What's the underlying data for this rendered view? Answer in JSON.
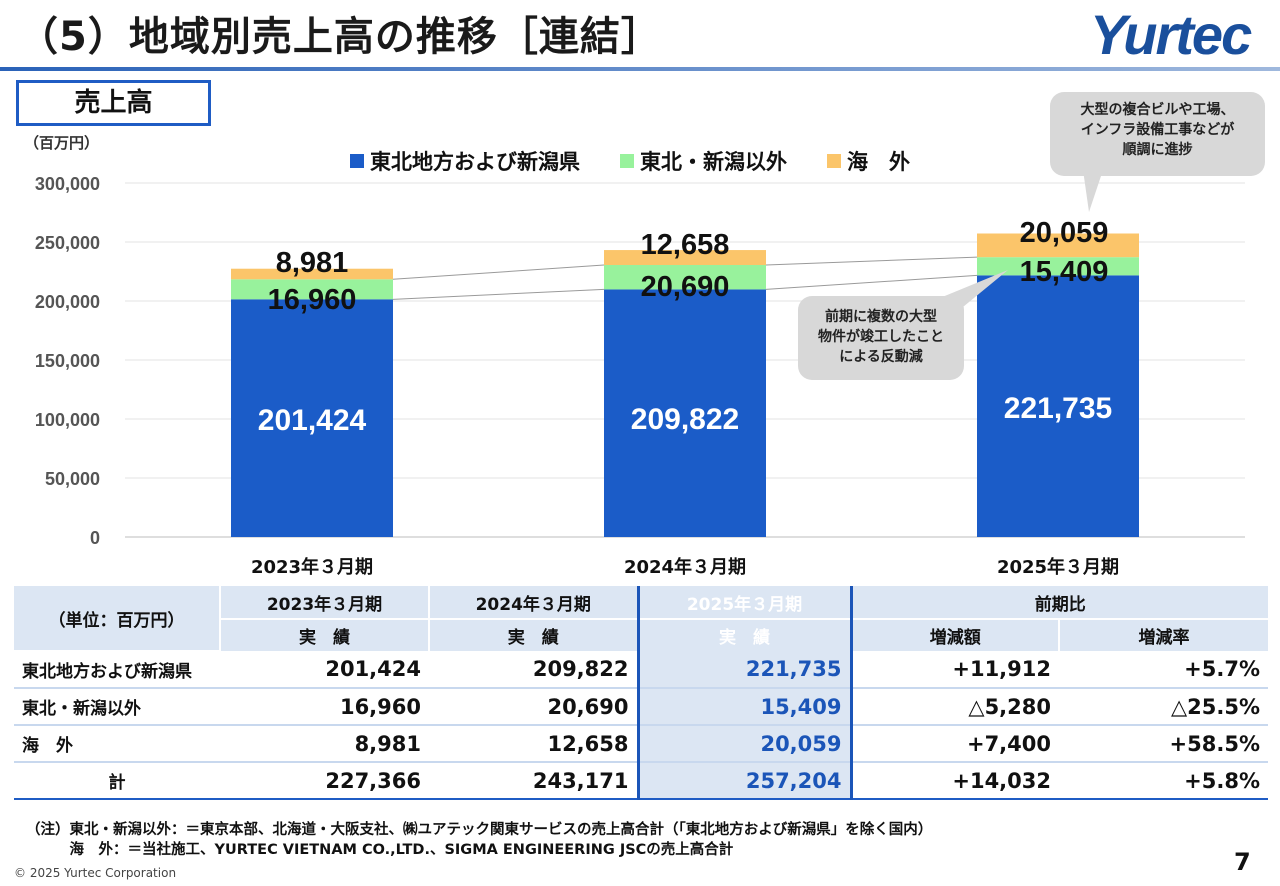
{
  "header": {
    "title": "（5）地域別売上高の推移［連結］",
    "logo": "Yurtec",
    "section_label": "売上高"
  },
  "chart_data": {
    "type": "bar",
    "stacked": true,
    "unit": "（百万円）",
    "categories": [
      "2023年３月期",
      "2024年３月期",
      "2025年３月期"
    ],
    "series": [
      {
        "name": "東北地方および新潟県",
        "color": "#1b5cc8",
        "values": [
          201424,
          209822,
          221735
        ],
        "labels": [
          "201,424",
          "209,822",
          "221,735"
        ]
      },
      {
        "name": "東北・新潟以外",
        "color": "#98f29c",
        "values": [
          16960,
          20690,
          15409
        ],
        "labels": [
          "16,960",
          "20,690",
          "15,409"
        ]
      },
      {
        "name": "海　外",
        "color": "#fbc56a",
        "values": [
          8981,
          12658,
          20059
        ],
        "labels": [
          "8,981",
          "12,658",
          "20,059"
        ]
      }
    ],
    "ylim": [
      0,
      300000
    ],
    "yticks": [
      0,
      50000,
      100000,
      150000,
      200000,
      250000,
      300000
    ],
    "ytick_labels": [
      "0",
      "50,000",
      "100,000",
      "150,000",
      "200,000",
      "250,000",
      "300,000"
    ],
    "legend_position": "top",
    "grid": true
  },
  "callouts": {
    "top": [
      "大型の複合ビルや工場、",
      "インフラ設備工事などが",
      "順調に進捗"
    ],
    "mid": [
      "前期に複数の大型",
      "物件が竣工したこと",
      "による反動減"
    ]
  },
  "table": {
    "unit_label": "（単位：百万円）",
    "years": [
      "2023年３月期",
      "2024年３月期",
      "2025年３月期"
    ],
    "actual_label": "実　績",
    "comparison_label": "前期比",
    "diff_label": "増減額",
    "rate_label": "増減率",
    "rows": [
      {
        "label": "東北地方および新潟県",
        "v2023": "201,424",
        "v2024": "209,822",
        "v2025": "221,735",
        "diff": "+11,912",
        "rate": "+5.7%"
      },
      {
        "label": "東北・新潟以外",
        "v2023": "16,960",
        "v2024": "20,690",
        "v2025": "15,409",
        "diff": "△5,280",
        "rate": "△25.5%"
      },
      {
        "label": "海　外",
        "v2023": "8,981",
        "v2024": "12,658",
        "v2025": "20,059",
        "diff": "+7,400",
        "rate": "+58.5%"
      },
      {
        "label": "計",
        "v2023": "227,366",
        "v2024": "243,171",
        "v2025": "257,204",
        "diff": "+14,032",
        "rate": "+5.8%"
      }
    ]
  },
  "notes": {
    "line1": "（注）東北・新潟以外：＝東京本部、北海道・大阪支社、㈱ユアテック関東サービスの売上高合計（「東北地方および新潟県」を除く国内）",
    "line2": "　　　海　外：＝当社施工、YURTEC VIETNAM CO.,LTD.、SIGMA ENGINEERING JSCの売上高合計"
  },
  "footer": {
    "copyright": "© 2025 Yurtec Corporation",
    "page_number": "7"
  }
}
